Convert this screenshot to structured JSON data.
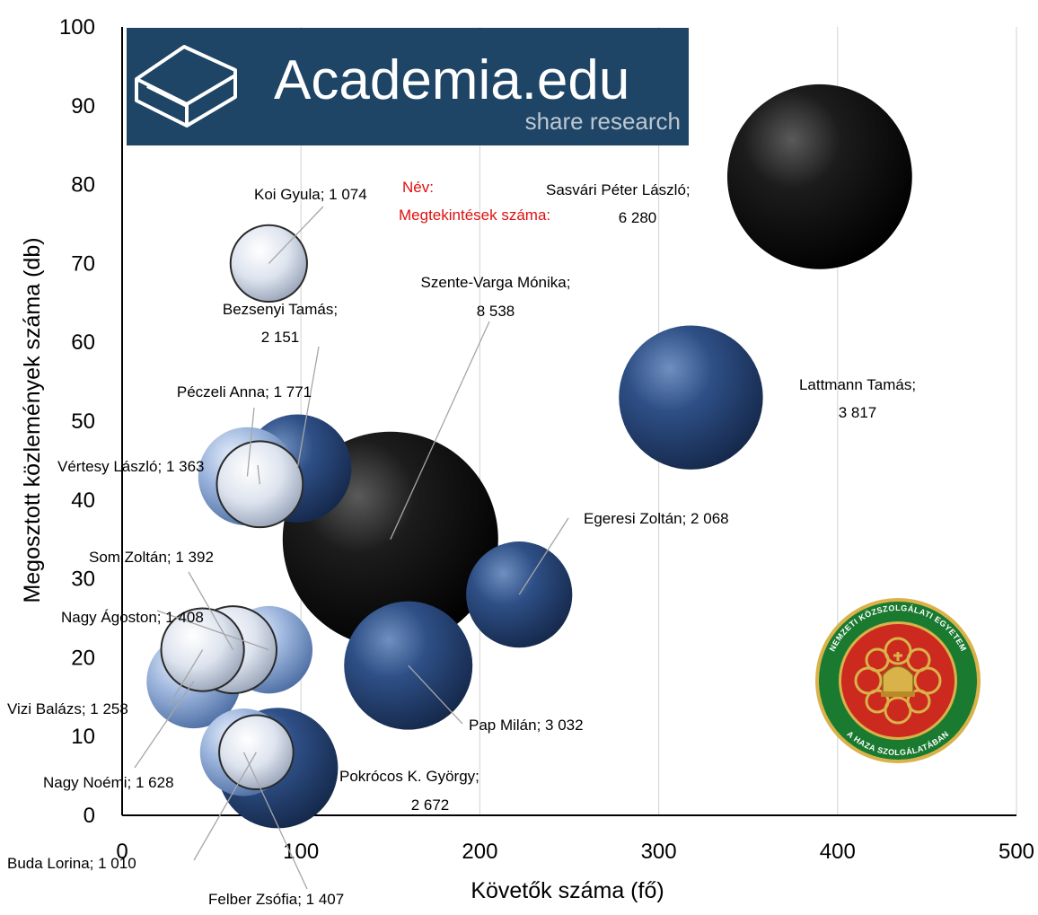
{
  "logos": {
    "academia": {
      "brand": "Academia.edu",
      "tagline": "share research",
      "bg_color": "#1e4466"
    },
    "nke_seal": {
      "top_text": "NEMZETI KÖZSZOLGÁLATI EGYETEM",
      "bottom_text": "A HAZA SZOLGÁLATÁBAN",
      "outer_color": "#1a7a30",
      "inner_color": "#cc2a1e",
      "ornament_color": "#d9b24a"
    }
  },
  "legend_note": {
    "line1": "Név:",
    "line2": "Megtekintések száma:",
    "color": "#e01010"
  },
  "chart_data": {
    "type": "bubble",
    "title": "",
    "xlabel": "Követők száma (fő)",
    "ylabel": "Megosztott közlemények száma (db)",
    "xlim": [
      0,
      500
    ],
    "ylim": [
      0,
      100
    ],
    "xticks": [
      0,
      100,
      200,
      300,
      400,
      500
    ],
    "yticks": [
      0,
      10,
      20,
      30,
      40,
      50,
      60,
      70,
      80,
      90,
      100
    ],
    "grid": {
      "vertical": true,
      "horizontal": false
    },
    "points": [
      {
        "name": "Szente-Varga Mónika",
        "label": "Szente-Varga Mónika;",
        "value_label": "8 538",
        "x": 150,
        "y": 35,
        "size": 8538,
        "shade": "black"
      },
      {
        "name": "Sasvári Péter László",
        "label": "Sasvári Péter László;",
        "value_label": "6 280",
        "x": 390,
        "y": 81,
        "size": 6280,
        "shade": "black"
      },
      {
        "name": "Lattmann Tamás",
        "label": "Lattmann Tamás;",
        "value_label": "3 817",
        "x": 318,
        "y": 53,
        "size": 3817,
        "shade": "navy"
      },
      {
        "name": "Pap Milán",
        "label": "Pap Milán; 3 032",
        "value_label": "",
        "x": 160,
        "y": 19,
        "size": 3032,
        "shade": "navy"
      },
      {
        "name": "Pokrócos K. György",
        "label": "Pokrócos K. György;",
        "value_label": "2 672",
        "x": 87,
        "y": 6,
        "size": 2672,
        "shade": "navy"
      },
      {
        "name": "Bezsenyi Tamás",
        "label": "Bezsenyi Tamás;",
        "value_label": "2 151",
        "x": 98,
        "y": 44,
        "size": 2151,
        "shade": "navy"
      },
      {
        "name": "Egeresi Zoltán",
        "label": "Egeresi Zoltán; 2 068",
        "value_label": "",
        "x": 222,
        "y": 28,
        "size": 2068,
        "shade": "navy"
      },
      {
        "name": "Péczeli Anna",
        "label": "Péczeli Anna; 1 771",
        "value_label": "",
        "x": 70,
        "y": 43,
        "size": 1771,
        "shade": "light"
      },
      {
        "name": "Nagy Noémi",
        "label": "Nagy Noémi; 1 628",
        "value_label": "",
        "x": 40,
        "y": 17,
        "size": 1628,
        "shade": "light"
      },
      {
        "name": "Nagy Ágoston",
        "label": "Nagy Ágoston; 1 408",
        "value_label": "",
        "x": 82,
        "y": 21,
        "size": 1408,
        "shade": "light"
      },
      {
        "name": "Felber Zsófia",
        "label": "Felber Zsófia; 1 407",
        "value_label": "",
        "x": 68,
        "y": 8,
        "size": 1407,
        "shade": "light"
      },
      {
        "name": "Som Zoltán",
        "label": "Som Zoltán; 1 392",
        "value_label": "",
        "x": 62,
        "y": 21,
        "size": 1392,
        "shade": "white"
      },
      {
        "name": "Vértesy László",
        "label": "Vértesy László; 1 363",
        "value_label": "",
        "x": 77,
        "y": 42,
        "size": 1363,
        "shade": "white"
      },
      {
        "name": "Vizi Balázs",
        "label": "Vizi Balázs; 1 258",
        "value_label": "",
        "x": 45,
        "y": 21,
        "size": 1258,
        "shade": "white"
      },
      {
        "name": "Koi Gyula",
        "label": "Koi Gyula; 1 074",
        "value_label": "",
        "x": 82,
        "y": 70,
        "size": 1074,
        "shade": "white"
      },
      {
        "name": "Buda Lorina",
        "label": "Buda Lorina; 1 010",
        "value_label": "",
        "x": 75,
        "y": 8,
        "size": 1010,
        "shade": "white"
      }
    ]
  }
}
